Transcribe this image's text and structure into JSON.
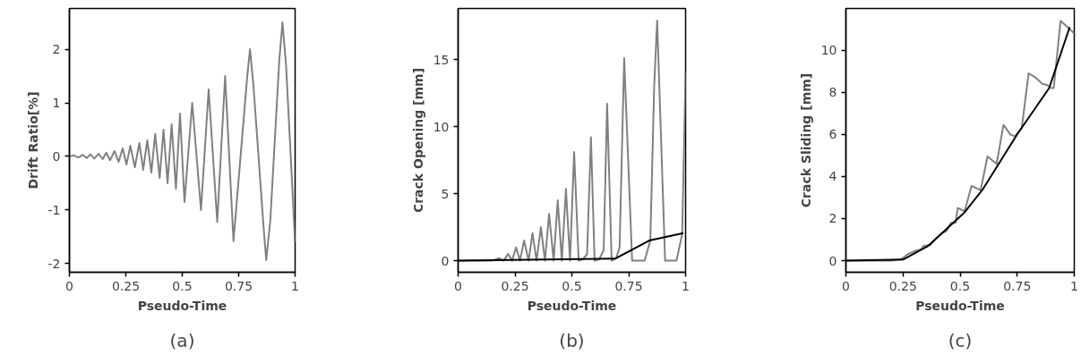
{
  "chart_data": [
    {
      "type": "line",
      "xlabel": "Pseudo-Time",
      "ylabel": "Drift Ratio[%]",
      "annotations": [
        "(a)"
      ],
      "xlim": [
        0,
        1
      ],
      "ylim": [
        -2.16,
        2.76
      ],
      "xticks": [
        0,
        0.25,
        0.5,
        0.75,
        1
      ],
      "yticks": [
        {
          "value": -2,
          "label": "-2"
        },
        {
          "value": -1,
          "label": "-1"
        },
        0,
        1,
        2
      ],
      "series": [
        {
          "color": "#808080",
          "x": [
            0,
            0.02,
            0.04,
            0.06,
            0.077,
            0.093,
            0.11,
            0.13,
            0.147,
            0.163,
            0.18,
            0.2,
            0.218,
            0.236,
            0.253,
            0.27,
            0.29,
            0.31,
            0.327,
            0.345,
            0.363,
            0.38,
            0.4,
            0.417,
            0.435,
            0.453,
            0.472,
            0.49,
            0.51,
            0.544,
            0.583,
            0.617,
            0.655,
            0.69,
            0.727,
            0.787,
            0.8,
            0.815,
            0.86,
            0.872,
            0.89,
            0.93,
            0.944,
            0.96,
            1.0
          ],
          "values": [
            0,
            0.02,
            -0.02,
            0.03,
            -0.03,
            0.04,
            -0.04,
            0.05,
            -0.05,
            0.07,
            -0.07,
            0.1,
            -0.1,
            0.15,
            -0.15,
            0.2,
            -0.2,
            0.25,
            -0.25,
            0.3,
            -0.3,
            0.42,
            -0.4,
            0.5,
            -0.5,
            0.6,
            -0.6,
            0.8,
            -0.85,
            1.0,
            -1.0,
            1.25,
            -1.22,
            1.5,
            -1.58,
            1.45,
            2.0,
            1.35,
            -1.3,
            -1.93,
            -1.2,
            1.8,
            2.5,
            1.7,
            -1.6
          ]
        }
      ]
    },
    {
      "type": "line",
      "xlabel": "Pseudo-Time",
      "ylabel": "Crack Opening [mm]",
      "annotations": [
        "(b)"
      ],
      "xlim": [
        0,
        1
      ],
      "ylim": [
        -0.86,
        18.8
      ],
      "xticks": [
        0,
        0.25,
        0.5,
        0.75,
        1
      ],
      "yticks": [
        0,
        5,
        10,
        15
      ],
      "series": [
        {
          "color": "#808080",
          "x": [
            0,
            0.15,
            0.18,
            0.2,
            0.22,
            0.237,
            0.255,
            0.272,
            0.29,
            0.31,
            0.327,
            0.345,
            0.364,
            0.382,
            0.4,
            0.42,
            0.438,
            0.456,
            0.474,
            0.492,
            0.51,
            0.53,
            0.548,
            0.567,
            0.584,
            0.6,
            0.62,
            0.64,
            0.655,
            0.675,
            0.695,
            0.71,
            0.73,
            0.765,
            0.82,
            0.845,
            0.862,
            0.875,
            0.91,
            0.96,
            0.985,
            1.0
          ],
          "values": [
            0,
            0,
            0.2,
            0,
            0.5,
            0,
            1.0,
            0,
            1.5,
            0,
            2.05,
            0,
            2.5,
            0,
            3.5,
            0,
            4.5,
            0,
            5.35,
            0,
            8.1,
            0,
            0.1,
            0.5,
            9.2,
            0,
            0.1,
            0.8,
            11.7,
            0,
            0.2,
            1.0,
            15.1,
            0,
            0,
            1.5,
            13,
            17.9,
            0,
            0,
            2.0,
            14
          ]
        },
        {
          "color": "#000000",
          "x": [
            0,
            0.69,
            0.84,
            0.99
          ],
          "values": [
            0,
            0.15,
            1.5,
            2.05
          ]
        }
      ]
    },
    {
      "type": "line",
      "xlabel": "Pseudo-Time",
      "ylabel": "Crack Sliding [mm]",
      "annotations": [
        "(c)"
      ],
      "xlim": [
        0,
        1
      ],
      "ylim": [
        -0.55,
        11.98
      ],
      "xticks": [
        0,
        0.25,
        0.5,
        0.75,
        1
      ],
      "yticks": [
        0,
        2,
        4,
        6,
        8,
        10
      ],
      "series": [
        {
          "color": "#808080",
          "x": [
            0,
            0.2,
            0.24,
            0.27,
            0.3,
            0.33,
            0.34,
            0.37,
            0.39,
            0.42,
            0.44,
            0.46,
            0.48,
            0.49,
            0.52,
            0.55,
            0.59,
            0.62,
            0.66,
            0.69,
            0.72,
            0.74,
            0.77,
            0.8,
            0.83,
            0.86,
            0.88,
            0.9,
            0.91,
            0.94,
            0.97,
            1.0
          ],
          "values": [
            0,
            0,
            0.05,
            0.3,
            0.45,
            0.55,
            0.7,
            0.75,
            1.0,
            1.3,
            1.4,
            1.8,
            1.8,
            2.5,
            2.35,
            3.55,
            3.35,
            4.95,
            4.6,
            6.45,
            6.0,
            5.9,
            6.3,
            8.9,
            8.7,
            8.4,
            8.35,
            8.2,
            8.2,
            11.4,
            11.1,
            10.8
          ]
        },
        {
          "color": "#000000",
          "x": [
            0,
            0.25,
            0.36,
            0.52,
            0.6,
            0.75,
            0.89,
            0.98
          ],
          "values": [
            0,
            0.05,
            0.7,
            2.3,
            3.4,
            6.0,
            8.2,
            11.1
          ]
        }
      ]
    }
  ]
}
